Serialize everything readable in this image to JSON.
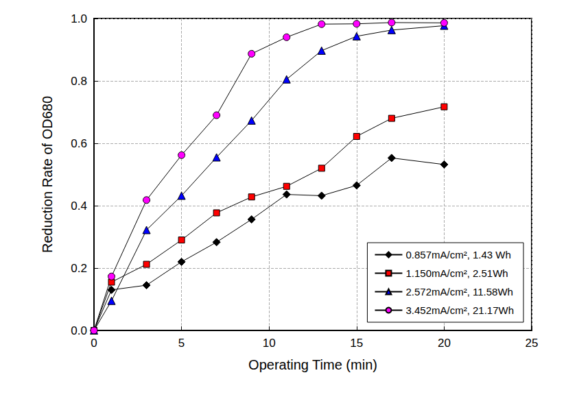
{
  "chart_data": {
    "type": "line",
    "x_label": "Operating Time (min)",
    "y_label": "Reduction Rate of OD680",
    "xlim": [
      0,
      25
    ],
    "xticks": [
      0,
      5,
      10,
      15,
      20,
      25
    ],
    "ylim": [
      0,
      1
    ],
    "yticks": [
      {
        "value": 0,
        "label": "0.0"
      },
      0.2,
      0.4,
      0.6,
      0.8,
      {
        "value": 1,
        "label": "1.0"
      }
    ],
    "grid": true,
    "legend": "lower right",
    "series": [
      {
        "name": "0.857mA/cm², 1.43 Wh",
        "color": "#000000",
        "marker": "diamond",
        "x": [
          0,
          1,
          3,
          5,
          7,
          9,
          11,
          13,
          15,
          17,
          20
        ],
        "values": [
          0,
          0.13,
          0.145,
          0.22,
          0.283,
          0.356,
          0.436,
          0.432,
          0.465,
          0.553,
          0.532
        ]
      },
      {
        "name": "1.150mA/cm², 2.51Wh",
        "color": "#ff0000",
        "marker": "square",
        "x": [
          0,
          1,
          3,
          5,
          7,
          9,
          11,
          13,
          15,
          17,
          20
        ],
        "values": [
          0,
          0.155,
          0.212,
          0.29,
          0.377,
          0.428,
          0.462,
          0.52,
          0.622,
          0.68,
          0.717
        ]
      },
      {
        "name": "2.572mA/cm², 11.58Wh",
        "color": "#0000ff",
        "marker": "triangle",
        "x": [
          0,
          1,
          3,
          5,
          7,
          9,
          11,
          13,
          15,
          17,
          20
        ],
        "values": [
          0,
          0.095,
          0.322,
          0.432,
          0.555,
          0.673,
          0.805,
          0.897,
          0.943,
          0.963,
          0.977
        ]
      },
      {
        "name": "3.452mA/cm², 21.17Wh",
        "color": "#ff00ff",
        "marker": "circle",
        "x": [
          0,
          1,
          3,
          5,
          7,
          9,
          11,
          13,
          15,
          17,
          20
        ],
        "values": [
          0,
          0.173,
          0.418,
          0.562,
          0.69,
          0.887,
          0.94,
          0.982,
          0.983,
          0.987,
          0.986
        ]
      }
    ]
  }
}
